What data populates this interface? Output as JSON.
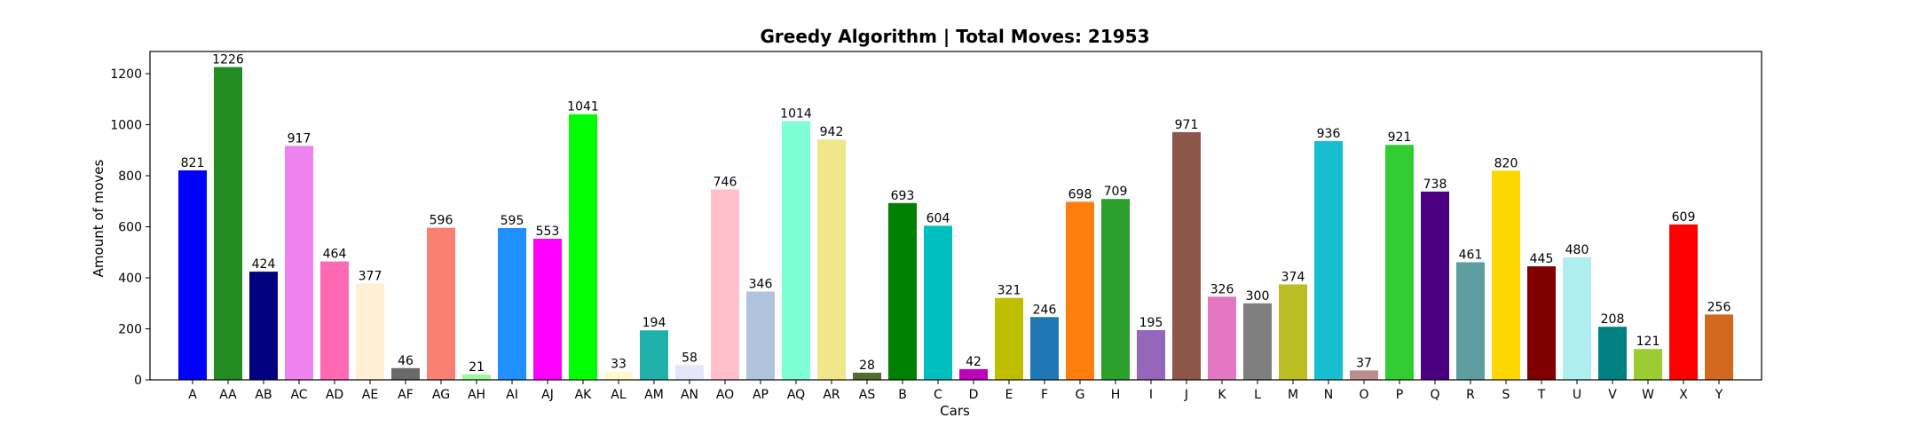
{
  "chart_data": {
    "type": "bar",
    "title": "Greedy Algorithm | Total Moves: 21953",
    "xlabel": "Cars",
    "ylabel": "Amount of moves",
    "ylim": [
      0,
      1287
    ],
    "yticks": [
      0,
      200,
      400,
      600,
      800,
      1000,
      1200
    ],
    "grid": false,
    "categories": [
      "A",
      "AA",
      "AB",
      "AC",
      "AD",
      "AE",
      "AF",
      "AG",
      "AH",
      "AI",
      "AJ",
      "AK",
      "AL",
      "AM",
      "AN",
      "AO",
      "AP",
      "AQ",
      "AR",
      "AS",
      "B",
      "C",
      "D",
      "E",
      "F",
      "G",
      "H",
      "I",
      "J",
      "K",
      "L",
      "M",
      "N",
      "O",
      "P",
      "Q",
      "R",
      "S",
      "T",
      "U",
      "V",
      "W",
      "X",
      "Y"
    ],
    "values": [
      821,
      1226,
      424,
      917,
      464,
      377,
      46,
      596,
      21,
      595,
      553,
      1041,
      33,
      194,
      58,
      746,
      346,
      1014,
      942,
      28,
      693,
      604,
      42,
      321,
      246,
      698,
      709,
      195,
      971,
      326,
      300,
      374,
      936,
      37,
      921,
      738,
      461,
      820,
      445,
      480,
      208,
      121,
      609,
      256
    ],
    "colors": [
      "#0000ff",
      "#228b22",
      "#000080",
      "#ee82ee",
      "#ff69b4",
      "#ffefd5",
      "#696969",
      "#fa8072",
      "#98fb98",
      "#1e90ff",
      "#ff00ff",
      "#00ff00",
      "#fffacd",
      "#20b2aa",
      "#e6e6fa",
      "#ffc0cb",
      "#b0c4de",
      "#7fffd4",
      "#f0e68c",
      "#556b2f",
      "#008000",
      "#00bfbf",
      "#bf00bf",
      "#bfbf00",
      "#1f77b4",
      "#ff7f0e",
      "#2ca02c",
      "#9467bd",
      "#8c564b",
      "#e377c2",
      "#7f7f7f",
      "#bcbd22",
      "#17becf",
      "#bc8f8f",
      "#32cd32",
      "#4b0082",
      "#5f9ea0",
      "#ffd700",
      "#800000",
      "#afeeee",
      "#008080",
      "#9acd32",
      "#ff0000",
      "#d2691e"
    ]
  }
}
